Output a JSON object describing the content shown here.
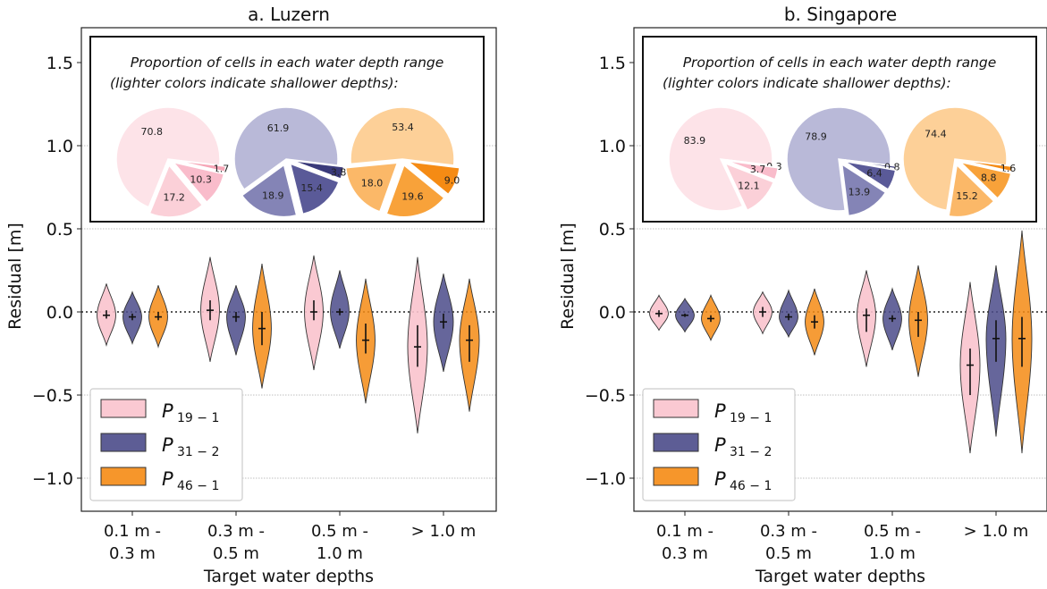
{
  "chart_data": [
    {
      "type": "violin",
      "title": "a. Luzern",
      "xlabel": "Target water depths",
      "ylabel": "Residual [m]",
      "ylim": [
        -1.2,
        1.7
      ],
      "yticks": [
        "1.5",
        "1.0",
        "0.5",
        "0.0",
        "−0.5",
        "−1.0"
      ],
      "categories": [
        [
          "0.1 m -",
          "0.3 m"
        ],
        [
          "0.3 m -",
          "0.5 m"
        ],
        [
          "0.5 m -",
          "1.0 m"
        ],
        [
          "> 1.0 m"
        ]
      ],
      "reference_line_y": 0,
      "series": [
        {
          "name": "19 − 1",
          "color": "#f9c3cd",
          "medians": [
            -0.02,
            0.01,
            0.0,
            -0.21
          ],
          "min": [
            -0.2,
            -0.3,
            -0.35,
            -0.73
          ],
          "max": [
            0.17,
            0.33,
            0.34,
            0.33
          ],
          "q1": [
            -0.04,
            -0.05,
            -0.05,
            -0.33
          ],
          "q3": [
            0.01,
            0.07,
            0.07,
            -0.08
          ]
        },
        {
          "name": "31 − 2",
          "color": "#4b4b8a",
          "medians": [
            -0.03,
            -0.03,
            0.0,
            -0.06
          ],
          "min": [
            -0.19,
            -0.26,
            -0.22,
            -0.36
          ],
          "max": [
            0.12,
            0.16,
            0.25,
            0.23
          ],
          "q1": [
            -0.05,
            -0.06,
            -0.02,
            -0.1
          ],
          "q3": [
            -0.01,
            0.0,
            0.02,
            -0.01
          ]
        },
        {
          "name": "46 − 1",
          "color": "#f58b14",
          "medians": [
            -0.03,
            -0.1,
            -0.17,
            -0.17
          ],
          "min": [
            -0.21,
            -0.46,
            -0.55,
            -0.6
          ],
          "max": [
            0.16,
            0.29,
            0.2,
            0.2
          ],
          "q1": [
            -0.05,
            -0.2,
            -0.25,
            -0.3
          ],
          "q3": [
            0.0,
            0.0,
            -0.07,
            -0.08
          ]
        }
      ],
      "legend_placement": "bottom-left",
      "inset": {
        "title": "Proportion of cells in each water depth range",
        "subtitle": "(lighter colors indicate shallower depths):",
        "pies": [
          {
            "slices": [
              70.8,
              17.2,
              10.3,
              1.7
            ],
            "labels": [
              "70.8",
              "17.2",
              "10.3",
              "1.7"
            ],
            "colors": [
              "#fde3e8",
              "#fbd0d8",
              "#f9bccb",
              "#f6a5b6"
            ],
            "explode": [
              0,
              1,
              1,
              1
            ]
          },
          {
            "slices": [
              61.9,
              18.9,
              15.4,
              3.8
            ],
            "labels": [
              "61.9",
              "18.9",
              "15.4",
              "3.8"
            ],
            "colors": [
              "#b9b9d8",
              "#8484b6",
              "#5a5a98",
              "#3a3a7a"
            ],
            "explode": [
              0,
              1,
              1,
              1
            ]
          },
          {
            "slices": [
              53.4,
              18.0,
              19.6,
              9.0
            ],
            "labels": [
              "53.4",
              "18.0",
              "19.6",
              "9.0"
            ],
            "colors": [
              "#fdd098",
              "#fbb868",
              "#f8a23a",
              "#f58b14"
            ],
            "explode": [
              0,
              1,
              1,
              1
            ]
          }
        ]
      }
    },
    {
      "type": "violin",
      "title": "b. Singapore",
      "xlabel": "Target water depths",
      "ylabel": "Residual [m]",
      "ylim": [
        -1.2,
        1.7
      ],
      "yticks": [
        "1.5",
        "1.0",
        "0.5",
        "0.0",
        "−0.5",
        "−1.0"
      ],
      "categories": [
        [
          "0.1 m -",
          "0.3 m"
        ],
        [
          "0.3 m -",
          "0.5 m"
        ],
        [
          "0.5 m -",
          "1.0 m"
        ],
        [
          "> 1.0 m"
        ]
      ],
      "reference_line_y": 0,
      "series": [
        {
          "name": "19 − 1",
          "color": "#f9c3cd",
          "medians": [
            -0.01,
            0.0,
            -0.02,
            -0.32
          ],
          "min": [
            -0.11,
            -0.13,
            -0.33,
            -0.85
          ],
          "max": [
            0.1,
            0.12,
            0.25,
            0.18
          ],
          "q1": [
            -0.03,
            -0.03,
            -0.12,
            -0.5
          ],
          "q3": [
            0.01,
            0.03,
            0.02,
            -0.22
          ]
        },
        {
          "name": "31 − 2",
          "color": "#4b4b8a",
          "medians": [
            -0.02,
            -0.03,
            -0.04,
            -0.16
          ],
          "min": [
            -0.12,
            -0.15,
            -0.23,
            -0.75
          ],
          "max": [
            0.08,
            0.13,
            0.14,
            0.28
          ],
          "q1": [
            -0.03,
            -0.05,
            -0.06,
            -0.3
          ],
          "q3": [
            -0.01,
            -0.01,
            -0.02,
            -0.05
          ]
        },
        {
          "name": "46 − 1",
          "color": "#f58b14",
          "medians": [
            -0.04,
            -0.06,
            -0.05,
            -0.16
          ],
          "min": [
            -0.17,
            -0.26,
            -0.39,
            -0.85
          ],
          "max": [
            0.1,
            0.14,
            0.28,
            0.49
          ],
          "q1": [
            -0.06,
            -0.1,
            -0.15,
            -0.33
          ],
          "q3": [
            -0.02,
            -0.02,
            0.0,
            -0.03
          ]
        }
      ],
      "legend_placement": "bottom-left",
      "inset": {
        "title": "Proportion of cells in each water depth range",
        "subtitle": "(lighter colors indicate shallower depths):",
        "pies": [
          {
            "slices": [
              83.9,
              12.1,
              3.7,
              0.3
            ],
            "labels": [
              "83.9",
              "12.1",
              "3.7",
              "0.3"
            ],
            "colors": [
              "#fde3e8",
              "#fbd0d8",
              "#f9bccb",
              "#f6a5b6"
            ],
            "explode": [
              0,
              1,
              1,
              1
            ]
          },
          {
            "slices": [
              78.9,
              13.9,
              6.4,
              0.8
            ],
            "labels": [
              "78.9",
              "13.9",
              "6.4",
              "0.8"
            ],
            "colors": [
              "#b9b9d8",
              "#8484b6",
              "#5a5a98",
              "#3a3a7a"
            ],
            "explode": [
              0,
              1,
              1,
              1
            ]
          },
          {
            "slices": [
              74.4,
              15.2,
              8.8,
              1.6
            ],
            "labels": [
              "74.4",
              "15.2",
              "8.8",
              "1.6"
            ],
            "colors": [
              "#fdd098",
              "#fbb868",
              "#f8a23a",
              "#f58b14"
            ],
            "explode": [
              0,
              1,
              1,
              1
            ]
          }
        ]
      }
    }
  ],
  "legend_letter": "P"
}
